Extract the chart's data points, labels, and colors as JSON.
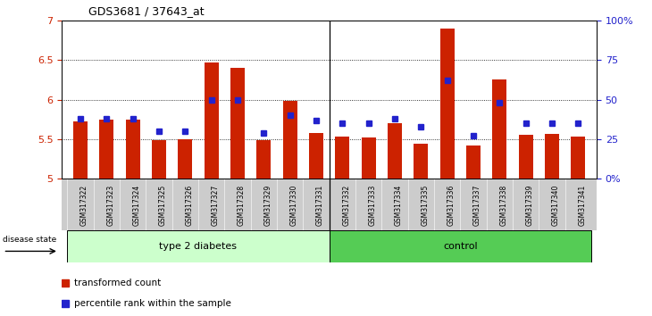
{
  "title": "GDS3681 / 37643_at",
  "samples": [
    "GSM317322",
    "GSM317323",
    "GSM317324",
    "GSM317325",
    "GSM317326",
    "GSM317327",
    "GSM317328",
    "GSM317329",
    "GSM317330",
    "GSM317331",
    "GSM317332",
    "GSM317333",
    "GSM317334",
    "GSM317335",
    "GSM317336",
    "GSM317337",
    "GSM317338",
    "GSM317339",
    "GSM317340",
    "GSM317341"
  ],
  "bar_values": [
    5.72,
    5.75,
    5.75,
    5.49,
    5.5,
    6.47,
    6.4,
    5.49,
    5.98,
    5.58,
    5.53,
    5.52,
    5.7,
    5.44,
    6.9,
    5.42,
    6.25,
    5.55,
    5.57,
    5.53
  ],
  "percentile_values": [
    38,
    38,
    38,
    30,
    30,
    50,
    50,
    29,
    40,
    37,
    35,
    35,
    38,
    33,
    62,
    27,
    48,
    35,
    35,
    35
  ],
  "bar_color": "#cc2200",
  "percentile_color": "#2222cc",
  "ylim_left": [
    5,
    7
  ],
  "ylim_right": [
    0,
    100
  ],
  "yticks_left": [
    5.0,
    5.5,
    6.0,
    6.5,
    7.0
  ],
  "ytick_labels_left": [
    "5",
    "5.5",
    "6",
    "6.5",
    "7"
  ],
  "yticks_right": [
    0,
    25,
    50,
    75,
    100
  ],
  "ytick_labels_right": [
    "0%",
    "25",
    "50",
    "75",
    "100%"
  ],
  "group1_label": "type 2 diabetes",
  "group2_label": "control",
  "disease_state_label": "disease state",
  "legend_bar_label": "transformed count",
  "legend_dot_label": "percentile rank within the sample",
  "bar_width": 0.55,
  "baseline": 5.0,
  "group1_color": "#ccffcc",
  "group2_color": "#55cc55",
  "tick_bg_color": "#cccccc",
  "n_group1": 10,
  "n_group2": 10
}
